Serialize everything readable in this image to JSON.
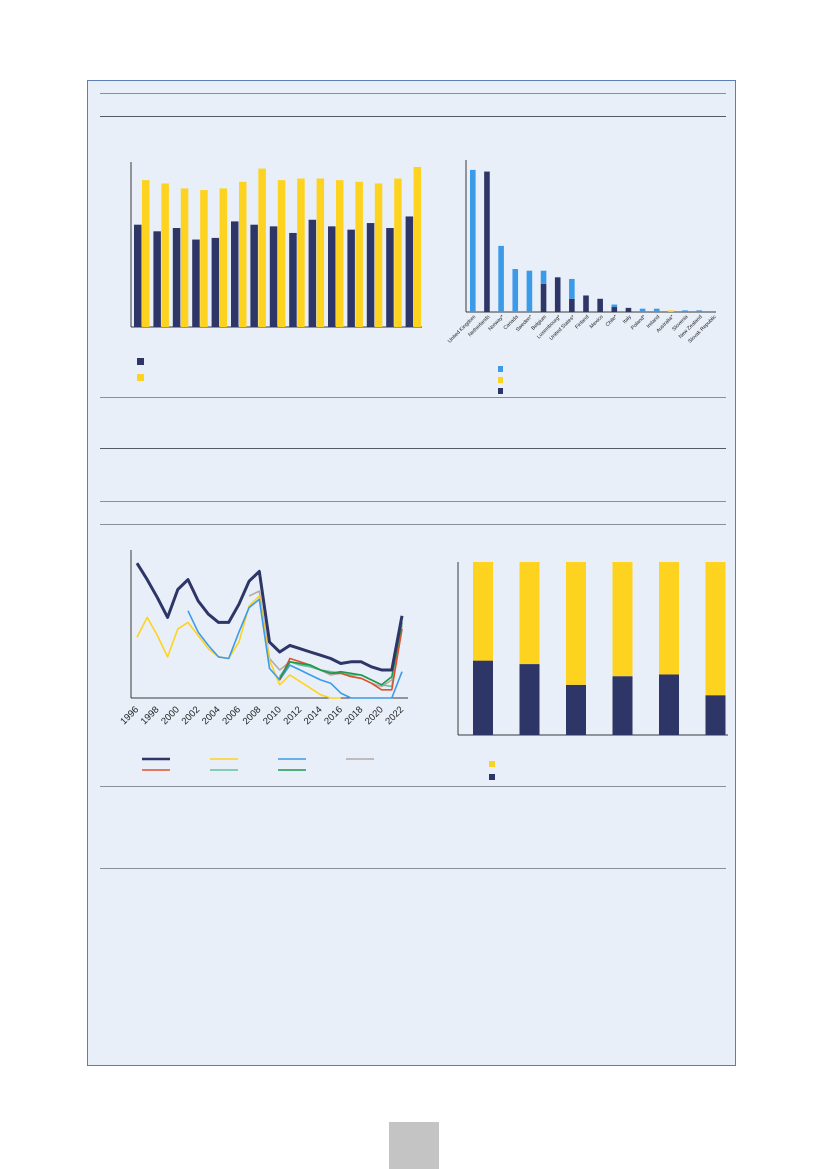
{
  "colors": {
    "navy": "#2e3668",
    "yellow": "#fed320",
    "blue": "#3c9be8",
    "orange": "#e0502a",
    "teal": "#62c09a",
    "green": "#1e9a4f",
    "grey": "#b5aaa6",
    "axis": "#3a3a3a",
    "panel": "#e8eff8"
  },
  "chart_data": [
    {
      "id": "chart1",
      "type": "bar",
      "categories": [
        "",
        "",
        "",
        "",
        "",
        "",
        "",
        "",
        "",
        "",
        "",
        "",
        "",
        "",
        ""
      ],
      "series": [
        {
          "values": [
            62,
            58,
            60,
            53,
            54,
            64,
            62,
            61,
            57,
            65,
            61,
            59,
            63,
            60,
            67
          ]
        },
        {
          "values": [
            89,
            87,
            84,
            83,
            84,
            88,
            96,
            89,
            90,
            90,
            89,
            88,
            87,
            90,
            97
          ]
        }
      ],
      "ylim": [
        0,
        100
      ],
      "legend": "bottom-left"
    },
    {
      "id": "chart2",
      "type": "bar",
      "stacked": true,
      "categories": [
        "United Kingdom",
        "Netherlands",
        "Norway*",
        "Canada",
        "Sweden*",
        "Belgium",
        "Luxembourg*",
        "United States*",
        "Finland",
        "Mexico",
        "Chile*",
        "Italy",
        "Poland*",
        "Ireland",
        "Australia*",
        "Slovenia",
        "New Zealand",
        "Slovak Republic"
      ],
      "series": [
        {
          "values": [
            0,
            85,
            0,
            0,
            0,
            17,
            21,
            8,
            10,
            8,
            3,
            2.5,
            0,
            0,
            0,
            0,
            0,
            0
          ]
        },
        {
          "values": [
            0,
            0,
            0,
            0,
            0,
            0,
            0,
            0,
            0,
            0,
            0,
            0,
            0,
            0,
            1,
            0,
            0,
            0
          ]
        },
        {
          "values": [
            86,
            0,
            40,
            26,
            25,
            8,
            0,
            12,
            0,
            0,
            1.5,
            0,
            2,
            2,
            0,
            1,
            1,
            0
          ]
        }
      ],
      "ylim": [
        0,
        92
      ],
      "legend": "bottom-left"
    },
    {
      "id": "chart3",
      "type": "line",
      "x": [
        1996,
        1997,
        1998,
        1999,
        2000,
        2001,
        2002,
        2003,
        2004,
        2005,
        2006,
        2007,
        2008,
        2009,
        2010,
        2011,
        2012,
        2013,
        2014,
        2015,
        2016,
        2017,
        2018,
        2019,
        2020,
        2021,
        2022
      ],
      "xticks": [
        "1996",
        "1998",
        "2000",
        "2002",
        "2004",
        "2006",
        "2008",
        "2010",
        "2012",
        "2014",
        "2016",
        "2018",
        "2020",
        "2022"
      ],
      "series": [
        {
          "values": [
            82,
            72,
            61,
            49,
            66,
            72,
            59,
            51,
            46,
            46,
            57,
            71,
            77,
            34,
            28,
            32,
            30,
            28,
            26,
            24,
            21,
            22,
            22,
            19,
            17,
            17,
            50
          ]
        },
        {
          "values": [
            null,
            null,
            null,
            null,
            null,
            null,
            null,
            null,
            null,
            null,
            null,
            null,
            null,
            null,
            11,
            24,
            22,
            20,
            17,
            15,
            15,
            13,
            12,
            9,
            5,
            5,
            42
          ]
        },
        {
          "values": [
            37,
            49,
            38,
            25,
            42,
            46,
            38,
            30,
            25,
            24,
            34,
            56,
            62,
            23,
            8,
            14,
            10,
            6,
            2,
            0,
            0,
            null,
            null,
            null,
            null,
            null,
            null
          ]
        },
        {
          "values": [
            null,
            null,
            null,
            null,
            null,
            null,
            null,
            null,
            null,
            null,
            null,
            null,
            null,
            null,
            13,
            22,
            20,
            19,
            17,
            16,
            15,
            14,
            14,
            11,
            8,
            7,
            42
          ]
        },
        {
          "values": [
            null,
            null,
            null,
            null,
            null,
            53,
            40,
            32,
            25,
            24,
            40,
            55,
            60,
            18,
            11,
            20,
            17,
            14,
            11,
            9,
            3,
            0,
            0,
            0,
            0,
            0,
            16
          ]
        },
        {
          "values": [
            null,
            null,
            null,
            null,
            null,
            null,
            null,
            null,
            null,
            null,
            null,
            null,
            null,
            null,
            12,
            22,
            21,
            20,
            17,
            15,
            16,
            15,
            14,
            11,
            8,
            13,
            46
          ]
        },
        {
          "values": [
            null,
            null,
            null,
            null,
            null,
            null,
            null,
            null,
            null,
            null,
            null,
            null,
            null,
            null,
            null,
            null,
            null,
            null,
            null,
            null,
            null,
            null,
            null,
            null,
            null,
            null,
            null
          ]
        },
        {
          "values": [
            null,
            null,
            null,
            null,
            null,
            null,
            null,
            null,
            null,
            null,
            null,
            62,
            65,
            24,
            17,
            22,
            21,
            19,
            17,
            14,
            15,
            13,
            12,
            9,
            7,
            11,
            44
          ]
        }
      ],
      "ylim": [
        0,
        90
      ],
      "legend": "bottom"
    },
    {
      "id": "chart4",
      "type": "bar",
      "stacked": true,
      "percent": true,
      "categories": [
        "",
        "",
        "",
        "",
        "",
        ""
      ],
      "series": [
        {
          "values": [
            43,
            41,
            29,
            34,
            35,
            23
          ]
        },
        {
          "values": [
            57,
            59,
            71,
            66,
            65,
            77
          ]
        }
      ],
      "ylim": [
        0,
        100
      ],
      "legend": "bottom-left"
    }
  ]
}
